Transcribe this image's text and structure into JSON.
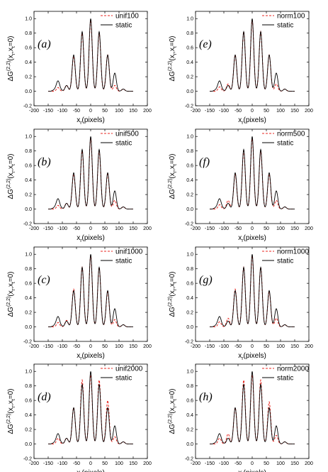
{
  "colors": {
    "dynamic": "#e8261f",
    "static": "#000000",
    "axis": "#000000"
  },
  "chart_data": [
    {
      "type": "line",
      "panel_label": "(a)",
      "xlabel_main": "x",
      "xlabel_sub": "r",
      "xlabel_unit": "(pixels)",
      "ylabel_main": "ΔG",
      "ylabel_sup": "(2,2)",
      "ylabel_args": "(x",
      "ylabel_args_sub1": "r",
      "ylabel_args_mid": ",x",
      "ylabel_args_sub2": "t",
      "ylabel_args_end": "=0)",
      "xlim": [
        -200,
        200
      ],
      "ylim": [
        -0.2,
        1.1
      ],
      "xticks": [
        "-200",
        "-150",
        "-100",
        "-50",
        "0",
        "50",
        "100",
        "150",
        "200"
      ],
      "yticks": [
        "-0.2",
        "0.0",
        "0.2",
        "0.4",
        "0.6",
        "0.8",
        "1.0"
      ],
      "legend": "top-right",
      "series": [
        {
          "name": "unif100",
          "style": "dashed",
          "peaks": [
            0.0,
            0.05,
            0.08,
            0.48,
            0.8,
            0.98,
            0.8,
            0.5,
            0.08,
            0.03
          ]
        },
        {
          "name": "static",
          "style": "solid",
          "peaks": [
            0.0,
            0.1,
            0.08,
            0.5,
            0.82,
            1.0,
            0.82,
            0.5,
            0.25,
            0.03
          ]
        }
      ]
    },
    {
      "type": "line",
      "panel_label": "(b)",
      "xlabel_main": "x",
      "xlabel_sub": "r",
      "xlabel_unit": "(pixels)",
      "ylabel_main": "ΔG",
      "ylabel_sup": "(2,2)",
      "ylabel_args": "(x",
      "ylabel_args_sub1": "r",
      "ylabel_args_mid": ",x",
      "ylabel_args_sub2": "t",
      "ylabel_args_end": "=0)",
      "xlim": [
        -200,
        200
      ],
      "ylim": [
        -0.2,
        1.1
      ],
      "xticks": [
        "-200",
        "-150",
        "-100",
        "-50",
        "0",
        "50",
        "100",
        "150",
        "200"
      ],
      "yticks": [
        "-0.2",
        "0.0",
        "0.2",
        "0.4",
        "0.6",
        "0.8",
        "1.0"
      ],
      "legend": "top-right",
      "series": [
        {
          "name": "unif500",
          "style": "dashed",
          "peaks": [
            0.0,
            0.05,
            0.08,
            0.48,
            0.8,
            0.97,
            0.8,
            0.48,
            0.12,
            0.03
          ]
        },
        {
          "name": "static",
          "style": "solid",
          "peaks": [
            0.0,
            0.1,
            0.08,
            0.5,
            0.82,
            1.0,
            0.82,
            0.5,
            0.25,
            0.03
          ]
        }
      ]
    },
    {
      "type": "line",
      "panel_label": "(c)",
      "xlabel_main": "x",
      "xlabel_sub": "r",
      "xlabel_unit": "(pixels)",
      "ylabel_main": "ΔG",
      "ylabel_sup": "(2,2)",
      "ylabel_args": "(x",
      "ylabel_args_sub1": "r",
      "ylabel_args_mid": ",x",
      "ylabel_args_sub2": "t",
      "ylabel_args_end": "=0)",
      "xlim": [
        -200,
        200
      ],
      "ylim": [
        -0.2,
        1.1
      ],
      "xticks": [
        "-200",
        "-150",
        "-100",
        "-50",
        "0",
        "50",
        "100",
        "150",
        "200"
      ],
      "yticks": [
        "-0.2",
        "0.0",
        "0.2",
        "0.4",
        "0.6",
        "0.8",
        "1.0"
      ],
      "legend": "top-right",
      "series": [
        {
          "name": "unif1000",
          "style": "dashed",
          "peaks": [
            0.0,
            0.06,
            0.09,
            0.52,
            0.82,
            0.98,
            0.82,
            0.48,
            0.1,
            0.03
          ]
        },
        {
          "name": "static",
          "style": "solid",
          "peaks": [
            0.0,
            0.1,
            0.08,
            0.5,
            0.82,
            1.0,
            0.82,
            0.5,
            0.25,
            0.03
          ]
        }
      ]
    },
    {
      "type": "line",
      "panel_label": "(d)",
      "xlabel_main": "x",
      "xlabel_sub": "r",
      "xlabel_unit": "(pixels)",
      "ylabel_main": "ΔG",
      "ylabel_sup": "(2,2)",
      "ylabel_args": "(x",
      "ylabel_args_sub1": "r",
      "ylabel_args_mid": ",x",
      "ylabel_args_sub2": "t",
      "ylabel_args_end": "=0)",
      "xlim": [
        -200,
        200
      ],
      "ylim": [
        -0.2,
        1.1
      ],
      "xticks": [
        "-200",
        "-150",
        "-100",
        "-50",
        "0",
        "50",
        "100",
        "150",
        "200"
      ],
      "yticks": [
        "-0.2",
        "0.0",
        "0.2",
        "0.4",
        "0.6",
        "0.8",
        "1.0"
      ],
      "legend": "top-right",
      "series": [
        {
          "name": "unif2000",
          "style": "dashed",
          "peaks": [
            0.0,
            0.08,
            0.08,
            0.5,
            0.88,
            0.95,
            0.88,
            0.6,
            0.1,
            0.03
          ]
        },
        {
          "name": "static",
          "style": "solid",
          "peaks": [
            0.0,
            0.1,
            0.08,
            0.5,
            0.82,
            1.0,
            0.82,
            0.5,
            0.25,
            0.03
          ]
        }
      ]
    },
    {
      "type": "line",
      "panel_label": "(e)",
      "xlabel_main": "x",
      "xlabel_sub": "r",
      "xlabel_unit": "(pixels)",
      "ylabel_main": "ΔG",
      "ylabel_sup": "(2,2)",
      "ylabel_args": "(x",
      "ylabel_args_sub1": "r",
      "ylabel_args_mid": ",x",
      "ylabel_args_sub2": "t",
      "ylabel_args_end": "=0)",
      "xlim": [
        -200,
        200
      ],
      "ylim": [
        -0.2,
        1.1
      ],
      "xticks": [
        "-200",
        "-150",
        "-100",
        "-50",
        "0",
        "50",
        "100",
        "150",
        "200"
      ],
      "yticks": [
        "-0.2",
        "0.0",
        "0.2",
        "0.4",
        "0.6",
        "0.8",
        "1.0"
      ],
      "legend": "top-right",
      "series": [
        {
          "name": "norm100",
          "style": "dashed",
          "peaks": [
            0.0,
            0.06,
            0.1,
            0.5,
            0.82,
            0.98,
            0.82,
            0.5,
            0.1,
            0.03
          ]
        },
        {
          "name": "static",
          "style": "solid",
          "peaks": [
            0.0,
            0.1,
            0.08,
            0.5,
            0.82,
            1.0,
            0.82,
            0.5,
            0.25,
            0.03
          ]
        }
      ]
    },
    {
      "type": "line",
      "panel_label": "(f)",
      "xlabel_main": "x",
      "xlabel_sub": "r",
      "xlabel_unit": "(pixels)",
      "ylabel_main": "ΔG",
      "ylabel_sup": "(2,2)",
      "ylabel_args": "(x",
      "ylabel_args_sub1": "r",
      "ylabel_args_mid": ",x",
      "ylabel_args_sub2": "t",
      "ylabel_args_end": "=0)",
      "xlim": [
        -200,
        200
      ],
      "ylim": [
        -0.2,
        1.1
      ],
      "xticks": [
        "-200",
        "-150",
        "-100",
        "-50",
        "0",
        "50",
        "100",
        "150",
        "200"
      ],
      "yticks": [
        "-0.2",
        "0.0",
        "0.2",
        "0.4",
        "0.6",
        "0.8",
        "1.0"
      ],
      "legend": "top-right",
      "series": [
        {
          "name": "norm500",
          "style": "dashed",
          "peaks": [
            0.0,
            0.06,
            0.12,
            0.48,
            0.8,
            0.97,
            0.8,
            0.48,
            0.12,
            0.03
          ]
        },
        {
          "name": "static",
          "style": "solid",
          "peaks": [
            0.0,
            0.1,
            0.08,
            0.5,
            0.82,
            1.0,
            0.82,
            0.5,
            0.25,
            0.03
          ]
        }
      ]
    },
    {
      "type": "line",
      "panel_label": "(g)",
      "xlabel_main": "x",
      "xlabel_sub": "r",
      "xlabel_unit": "(pixels)",
      "ylabel_main": "ΔG",
      "ylabel_sup": "(2,2)",
      "ylabel_args": "(x",
      "ylabel_args_sub1": "r",
      "ylabel_args_mid": ",x",
      "ylabel_args_sub2": "t",
      "ylabel_args_end": "=0)",
      "xlim": [
        -200,
        200
      ],
      "ylim": [
        -0.2,
        1.1
      ],
      "xticks": [
        "-200",
        "-150",
        "-100",
        "-50",
        "0",
        "50",
        "100",
        "150",
        "200"
      ],
      "yticks": [
        "-0.2",
        "0.0",
        "0.2",
        "0.4",
        "0.6",
        "0.8",
        "1.0"
      ],
      "legend": "top-right",
      "series": [
        {
          "name": "norm1000",
          "style": "dashed",
          "peaks": [
            0.0,
            0.07,
            0.12,
            0.52,
            0.82,
            0.98,
            0.82,
            0.48,
            0.12,
            0.03
          ]
        },
        {
          "name": "static",
          "style": "solid",
          "peaks": [
            0.0,
            0.1,
            0.08,
            0.5,
            0.82,
            1.0,
            0.82,
            0.5,
            0.25,
            0.03
          ]
        }
      ]
    },
    {
      "type": "line",
      "panel_label": "(h)",
      "xlabel_main": "x",
      "xlabel_sub": "r",
      "xlabel_unit": "(pixels)",
      "ylabel_main": "ΔG",
      "ylabel_sup": "(2,2)",
      "ylabel_args": "(x",
      "ylabel_args_sub1": "r",
      "ylabel_args_mid": ",x",
      "ylabel_args_sub2": "t",
      "ylabel_args_end": "=0)",
      "xlim": [
        -200,
        200
      ],
      "ylim": [
        -0.2,
        1.1
      ],
      "xticks": [
        "-200",
        "-150",
        "-100",
        "-50",
        "0",
        "50",
        "100",
        "150",
        "200"
      ],
      "yticks": [
        "-0.2",
        "0.0",
        "0.2",
        "0.4",
        "0.6",
        "0.8",
        "1.0"
      ],
      "legend": "top-right",
      "series": [
        {
          "name": "norm2000",
          "style": "dashed",
          "peaks": [
            0.0,
            0.08,
            0.14,
            0.5,
            0.88,
            0.95,
            0.88,
            0.58,
            0.12,
            0.03
          ]
        },
        {
          "name": "static",
          "style": "solid",
          "peaks": [
            0.0,
            0.1,
            0.08,
            0.5,
            0.82,
            1.0,
            0.82,
            0.5,
            0.25,
            0.03
          ]
        }
      ]
    }
  ]
}
